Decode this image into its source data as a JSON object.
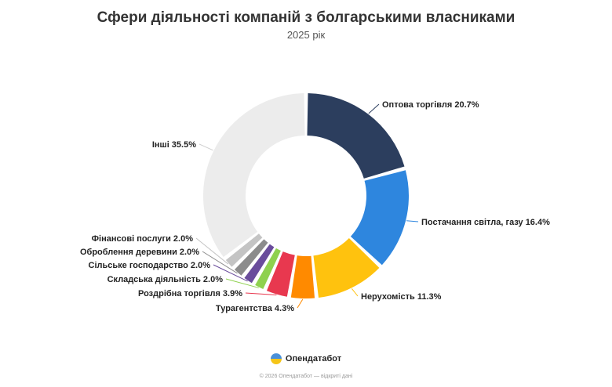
{
  "chart_data": {
    "type": "pie",
    "variant": "donut",
    "title": "Сфери діяльності компаній з болгарськими власниками",
    "subtitle": "2025 рік",
    "slices": [
      {
        "label": "Оптова торгівля",
        "value": 20.7,
        "display": "Оптова торгівля 20.7%",
        "color": "#2c3e5e"
      },
      {
        "label": "Постачання світла, газу",
        "value": 16.4,
        "display": "Постачання світла, газу 16.4%",
        "color": "#2e86de"
      },
      {
        "label": "Нерухомість",
        "value": 11.3,
        "display": "Нерухомість 11.3%",
        "color": "#ffc20e"
      },
      {
        "label": "Турагентства",
        "value": 4.3,
        "display": "Турагентства 4.3%",
        "color": "#ff8a00"
      },
      {
        "label": "Роздрібна торгівля",
        "value": 3.9,
        "display": "Роздрібна торгівля 3.9%",
        "color": "#e8384f"
      },
      {
        "label": "Складська діяльність",
        "value": 2.0,
        "display": "Складська діяльність 2.0%",
        "color": "#8fd14f"
      },
      {
        "label": "Сільське господарство",
        "value": 2.0,
        "display": "Сільське господарство 2.0%",
        "color": "#6a4c9c"
      },
      {
        "label": "Оброблення деревини",
        "value": 2.0,
        "display": "Оброблення деревини 2.0%",
        "color": "#8c8c8c"
      },
      {
        "label": "Фінансові послуги",
        "value": 2.0,
        "display": "Фінансові послуги 2.0%",
        "color": "#c4c4c4"
      },
      {
        "label": "Інші",
        "value": 35.5,
        "display": "Інші 35.5%",
        "color": "#ececec"
      }
    ]
  },
  "brand": {
    "name": "Опендатабот",
    "logo_icon": "opendatabot-logo-icon"
  },
  "footer": {
    "text": "© 2026 Опендатабот — відкриті дані"
  }
}
